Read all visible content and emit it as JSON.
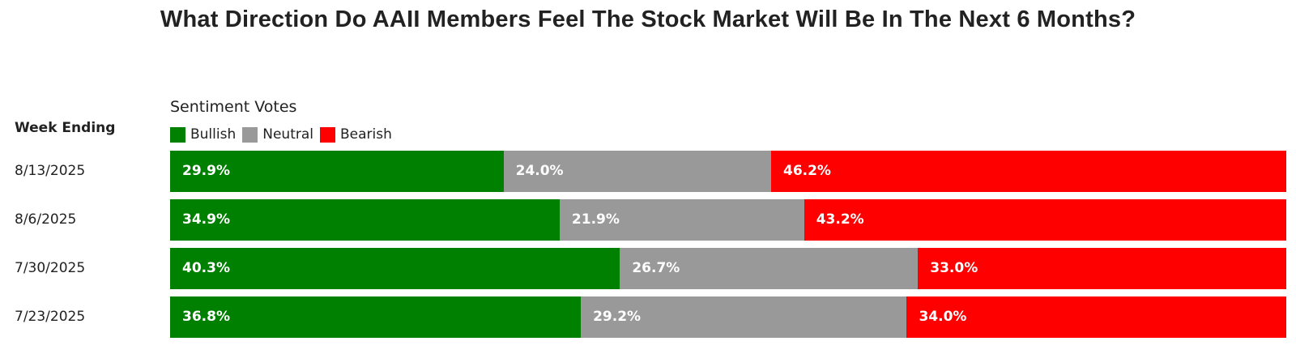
{
  "chart_data": {
    "type": "bar",
    "stacked": true,
    "orientation": "horizontal",
    "title": "What Direction Do AAII Members Feel The Stock Market Will Be In The Next 6 Months?",
    "legend_title": "Sentiment Votes",
    "row_header": "Week Ending",
    "categories": [
      "8/13/2025",
      "8/6/2025",
      "7/30/2025",
      "7/23/2025"
    ],
    "series": [
      {
        "name": "Bullish",
        "color": "#008000",
        "values": [
          29.9,
          34.9,
          40.3,
          36.8
        ],
        "labels": [
          "29.9%",
          "34.9%",
          "40.3%",
          "36.8%"
        ]
      },
      {
        "name": "Neutral",
        "color": "#999999",
        "values": [
          24.0,
          21.9,
          26.7,
          29.2
        ],
        "labels": [
          "24.0%",
          "21.9%",
          "26.7%",
          "29.2%"
        ]
      },
      {
        "name": "Bearish",
        "color": "#ff0000",
        "values": [
          46.2,
          43.2,
          33.0,
          34.0
        ],
        "labels": [
          "46.2%",
          "43.2%",
          "33.0%",
          "34.0%"
        ]
      }
    ],
    "xlim": [
      0,
      100
    ],
    "legend_position": "top-left",
    "grid": false
  }
}
